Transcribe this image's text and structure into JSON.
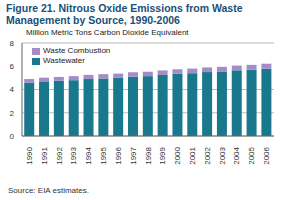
{
  "chart_data": {
    "type": "bar",
    "title": "Figure 21. Nitrous Oxide Emissions from Waste Management by Source, 1990-2006",
    "subtitle": "Million Metric Tons Carbon Dioxide Equivalent",
    "categories": [
      "1990",
      "1991",
      "1992",
      "1993",
      "1994",
      "1995",
      "1996",
      "1997",
      "1998",
      "1999",
      "2000",
      "2001",
      "2002",
      "2003",
      "2004",
      "2005",
      "2006"
    ],
    "series": [
      {
        "name": "Wastewater",
        "color": "#19788c",
        "values": [
          4.6,
          4.7,
          4.75,
          4.8,
          4.9,
          4.95,
          5.0,
          5.1,
          5.15,
          5.25,
          5.35,
          5.4,
          5.5,
          5.55,
          5.65,
          5.7,
          5.8
        ]
      },
      {
        "name": "Waste Combustion",
        "color": "#a58cc8",
        "values": [
          0.3,
          0.32,
          0.33,
          0.35,
          0.36,
          0.37,
          0.37,
          0.38,
          0.38,
          0.39,
          0.39,
          0.4,
          0.4,
          0.4,
          0.41,
          0.42,
          0.42
        ]
      }
    ],
    "ylim": [
      0,
      8
    ],
    "yticks": [
      0,
      2,
      4,
      6,
      8
    ],
    "stacked": true,
    "grid": true,
    "legend": "upper left",
    "annotations": [
      "Source: EIA estimates."
    ]
  }
}
